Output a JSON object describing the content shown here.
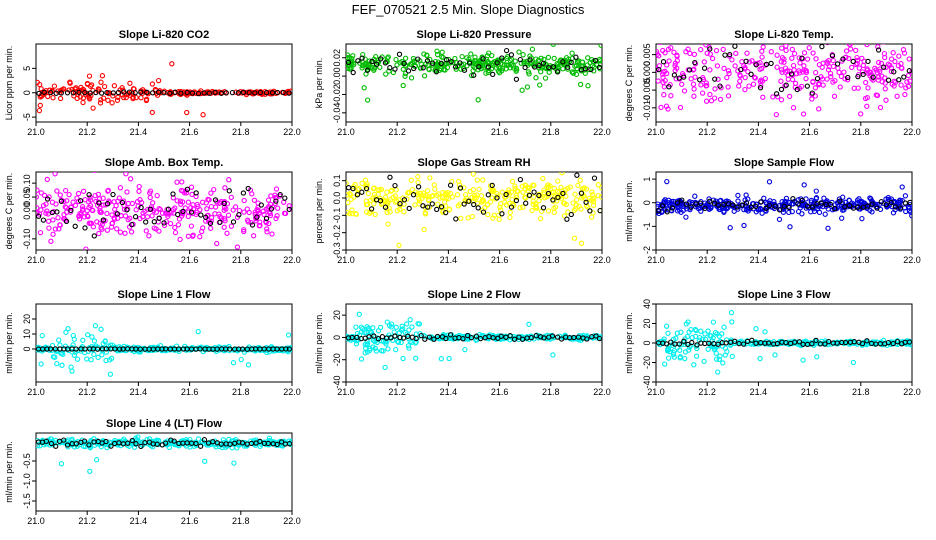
{
  "figure": {
    "title": "FEF_070521  2.5 Min. Slope Diagnostics"
  },
  "chart_data": [
    {
      "type": "scatter",
      "title": "Slope Li-820 CO2",
      "ylabel": "Licor ppm per min.",
      "xlim": [
        21.0,
        22.0
      ],
      "ylim": [
        -6,
        10
      ],
      "xticks": [
        "21.0",
        "21.2",
        "21.4",
        "21.6",
        "21.8",
        "22.0"
      ],
      "yticks": [
        "-5",
        "0",
        "5"
      ],
      "series": [
        {
          "color": "#ff0000",
          "center": 0,
          "spread": 1.2,
          "outlier": 6,
          "n": 230,
          "active_until": 21.48
        },
        {
          "color": "#000000",
          "center": 0,
          "spread": 0.08,
          "n": 45
        }
      ]
    },
    {
      "type": "scatter",
      "title": "Slope Li-820 Pressure",
      "ylabel": "kPa per min.",
      "xlim": [
        21.0,
        22.0
      ],
      "ylim": [
        -0.05,
        0.035
      ],
      "xticks": [
        "21.0",
        "21.2",
        "21.4",
        "21.6",
        "21.8",
        "22.0"
      ],
      "yticks": [
        "-0.04",
        "-0.02",
        "0.00",
        "0.02"
      ],
      "series": [
        {
          "color": "#00bb00",
          "center": 0.013,
          "spread": 0.005,
          "outlier": 0.04,
          "n": 330
        },
        {
          "color": "#000000",
          "center": 0.014,
          "spread": 0.006,
          "n": 55
        }
      ]
    },
    {
      "type": "scatter",
      "title": "Slope Li-820 Temp.",
      "ylabel": "degrees C per min.",
      "xlim": [
        21.0,
        22.0
      ],
      "ylim": [
        -0.014,
        0.008
      ],
      "xticks": [
        "21.0",
        "21.2",
        "21.4",
        "21.6",
        "21.8",
        "22.0"
      ],
      "yticks": [
        "-0.010",
        "-0.005",
        "0.000",
        "0.005"
      ],
      "series": [
        {
          "color": "#ff00ff",
          "center": 0.001,
          "spread": 0.005,
          "n": 330
        },
        {
          "color": "#000000",
          "center": 0.001,
          "spread": 0.004,
          "n": 50
        }
      ]
    },
    {
      "type": "scatter",
      "title": "Slope Amb. Box Temp.",
      "ylabel": "degrees C per min.",
      "xlim": [
        21.0,
        22.0
      ],
      "ylim": [
        -0.14,
        0.14
      ],
      "xticks": [
        "21.0",
        "21.2",
        "21.4",
        "21.6",
        "21.8",
        "22.0"
      ],
      "yticks": [
        "-0.10",
        "0.00",
        "0.05",
        "0.10"
      ],
      "series": [
        {
          "color": "#ff00ff",
          "center": 0,
          "spread": 0.05,
          "n": 340
        },
        {
          "color": "#000000",
          "center": 0,
          "spread": 0.04,
          "n": 55
        }
      ]
    },
    {
      "type": "scatter",
      "title": "Slope Gas Stream RH",
      "ylabel": "percent per min.",
      "xlim": [
        21.0,
        22.0
      ],
      "ylim": [
        -0.3,
        0.15
      ],
      "xticks": [
        "21.0",
        "21.2",
        "21.4",
        "21.6",
        "21.8",
        "22.0"
      ],
      "yticks": [
        "-0.3",
        "-0.2",
        "-0.1",
        "0.0",
        "0.1"
      ],
      "series": [
        {
          "color": "#ffff00",
          "center": 0,
          "spread": 0.05,
          "outlier": 0.29,
          "n": 330
        },
        {
          "color": "#000000",
          "center": 0,
          "spread": 0.05,
          "n": 55
        }
      ]
    },
    {
      "type": "scatter",
      "title": "Slope Sample Flow",
      "ylabel": "ml/min per min.",
      "xlim": [
        21.0,
        22.0
      ],
      "ylim": [
        -2.0,
        1.3
      ],
      "xticks": [
        "21.0",
        "21.2",
        "21.4",
        "21.6",
        "21.8",
        "22.0"
      ],
      "yticks": [
        "-2",
        "-1",
        "0",
        "1"
      ],
      "series": [
        {
          "color": "#0000dd",
          "center": -0.1,
          "spread": 0.15,
          "outlier": 1.0,
          "n": 360
        },
        {
          "color": "#000000",
          "center": -0.1,
          "spread": 0.12,
          "n": 55
        }
      ]
    },
    {
      "type": "scatter",
      "title": "Slope Line 1 Flow",
      "ylabel": "ml/min per min.",
      "xlim": [
        21.0,
        22.0
      ],
      "ylim": [
        -22,
        30
      ],
      "xticks": [
        "21.0",
        "21.2",
        "21.4",
        "21.6",
        "21.8",
        "22.0"
      ],
      "yticks": [
        "0",
        "10",
        "20"
      ],
      "series": [
        {
          "color": "#00eeee",
          "center": 0,
          "spread": 0.8,
          "outlier": 12,
          "n": 320,
          "burst": [
            21.05,
            21.3
          ]
        },
        {
          "color": "#000000",
          "center": 0,
          "spread": 0.05,
          "n": 60
        }
      ]
    },
    {
      "type": "scatter",
      "title": "Slope Line 2 Flow",
      "ylabel": "ml/min per min.",
      "xlim": [
        21.0,
        22.0
      ],
      "ylim": [
        -40,
        30
      ],
      "xticks": [
        "21.0",
        "21.2",
        "21.4",
        "21.6",
        "21.8",
        "22.0"
      ],
      "yticks": [
        "-40",
        "-20",
        "0",
        "20"
      ],
      "series": [
        {
          "color": "#00eeee",
          "center": 0,
          "spread": 1.0,
          "outlier": 20,
          "n": 320,
          "burst": [
            21.03,
            21.3
          ]
        },
        {
          "color": "#000000",
          "center": 0,
          "spread": 1.0,
          "n": 60
        }
      ]
    },
    {
      "type": "scatter",
      "title": "Slope Line 3 Flow",
      "ylabel": "ml/min per min.",
      "xlim": [
        21.0,
        22.0
      ],
      "ylim": [
        -40,
        40
      ],
      "xticks": [
        "21.0",
        "21.2",
        "21.4",
        "21.6",
        "21.8",
        "22.0"
      ],
      "yticks": [
        "-40",
        "-20",
        "0",
        "20",
        "40"
      ],
      "series": [
        {
          "color": "#00eeee",
          "center": 0,
          "spread": 1.0,
          "outlier": 22,
          "n": 320,
          "burst": [
            21.03,
            21.3
          ]
        },
        {
          "color": "#000000",
          "center": 0,
          "spread": 1.2,
          "n": 60
        }
      ]
    },
    {
      "type": "scatter",
      "title": "Slope Line 4 (LT) Flow",
      "ylabel": "ml/min per min.",
      "xlim": [
        21.0,
        22.0
      ],
      "ylim": [
        -1.75,
        0.2
      ],
      "xticks": [
        "21.0",
        "21.2",
        "21.4",
        "21.6",
        "21.8",
        "22.0"
      ],
      "yticks": [
        "-1.5",
        "-1.0",
        "-0.5"
      ],
      "series": [
        {
          "color": "#00eeee",
          "center": -0.05,
          "spread": 0.05,
          "outlier": 0.8,
          "n": 320
        },
        {
          "color": "#000000",
          "center": -0.05,
          "spread": 0.04,
          "n": 60
        }
      ]
    }
  ]
}
